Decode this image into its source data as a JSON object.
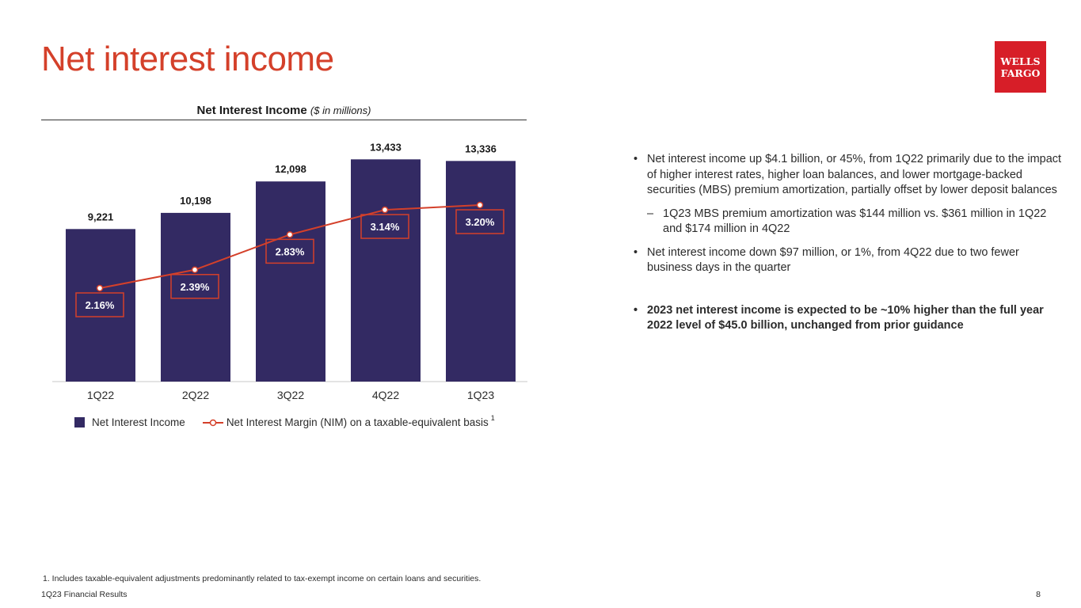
{
  "page": {
    "title": "Net interest income",
    "logo": [
      "WELLS",
      "FARGO"
    ],
    "footnote": "1. Includes taxable-equivalent adjustments predominantly related to tax-exempt income on certain loans and securities.",
    "footer_left": "1Q23 Financial Results",
    "page_number": "8"
  },
  "chart_data": {
    "type": "bar",
    "title": "Net Interest Income",
    "subtitle": "($ in millions)",
    "categories": [
      "1Q22",
      "2Q22",
      "3Q22",
      "4Q22",
      "1Q23"
    ],
    "series": [
      {
        "name": "Net Interest Income",
        "type": "bar",
        "values": [
          9221,
          10198,
          12098,
          13433,
          13336
        ],
        "labels": [
          "9,221",
          "10,198",
          "12,098",
          "13,433",
          "13,336"
        ],
        "color": "#332a63"
      },
      {
        "name": "Net Interest Margin (NIM) on a taxable-equivalent basis",
        "type": "line",
        "values": [
          2.16,
          2.39,
          2.83,
          3.14,
          3.2
        ],
        "labels": [
          "2.16%",
          "2.39%",
          "2.83%",
          "3.14%",
          "3.20%"
        ],
        "color": "#d4402a"
      }
    ],
    "legend_footnote_marker": "1",
    "legend_position": "bottom",
    "ylim": [
      0,
      14500
    ],
    "grid": false
  },
  "bullets": [
    {
      "level": 1,
      "bold": false,
      "text": "Net interest income up $4.1 billion, or 45%, from 1Q22 primarily due to the impact of higher interest rates, higher loan balances, and lower mortgage-backed securities (MBS) premium amortization, partially offset by lower deposit balances"
    },
    {
      "level": 2,
      "bold": false,
      "text": "1Q23 MBS premium amortization was $144 million vs. $361 million in 1Q22 and $174 million in 4Q22"
    },
    {
      "level": 1,
      "bold": false,
      "text": "Net interest income down $97 million, or 1%, from 4Q22 due to two fewer business days in the quarter"
    },
    {
      "level": 1,
      "bold": true,
      "text": "2023 net interest income is expected to be ~10% higher than the full year 2022 level of $45.0 billion, unchanged from prior guidance"
    }
  ],
  "colors": {
    "brand_red": "#d71e28",
    "title_red": "#d4402a",
    "bar": "#332a63",
    "line": "#d4402a"
  }
}
